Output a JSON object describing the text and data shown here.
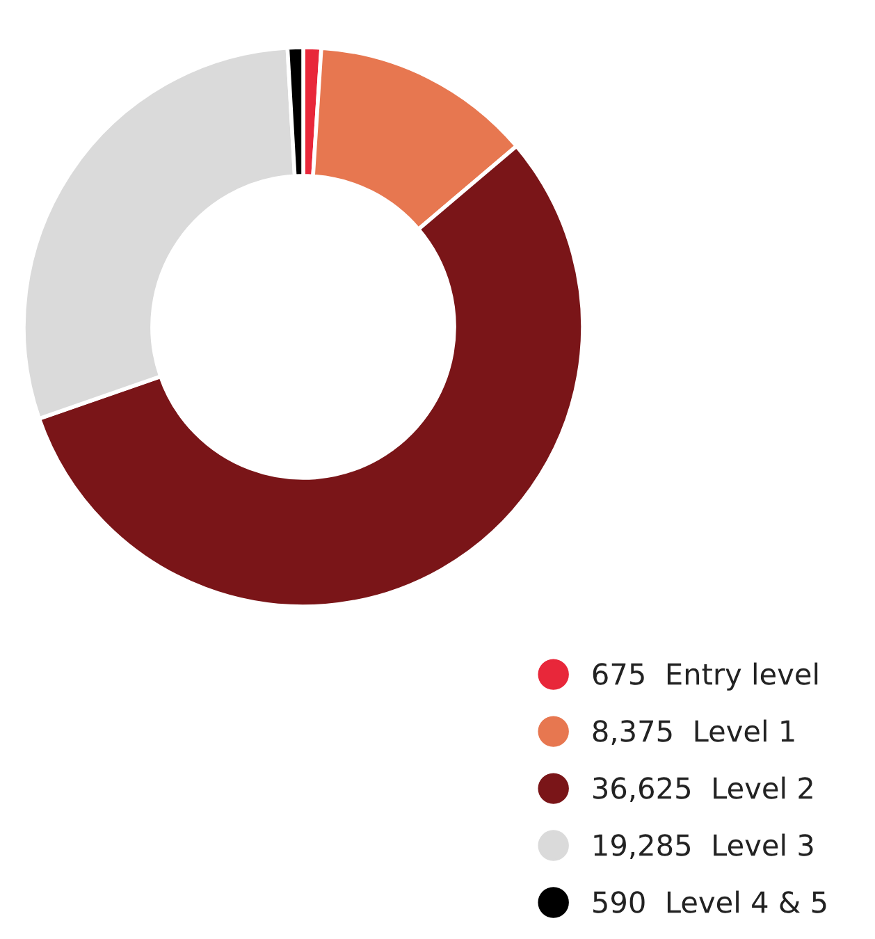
{
  "chart_data": {
    "type": "donut",
    "categories": [
      "Entry level",
      "Level 1",
      "Level 2",
      "Level 3",
      "Level 4 & 5"
    ],
    "values": [
      675,
      8375,
      36625,
      19285,
      590
    ],
    "colors": [
      "#e8273a",
      "#e77750",
      "#7a1518",
      "#dadada",
      "#000000"
    ],
    "value_labels": [
      "675",
      "8,375",
      "36,625",
      "19,285",
      "590"
    ],
    "legend": "bottom right"
  }
}
